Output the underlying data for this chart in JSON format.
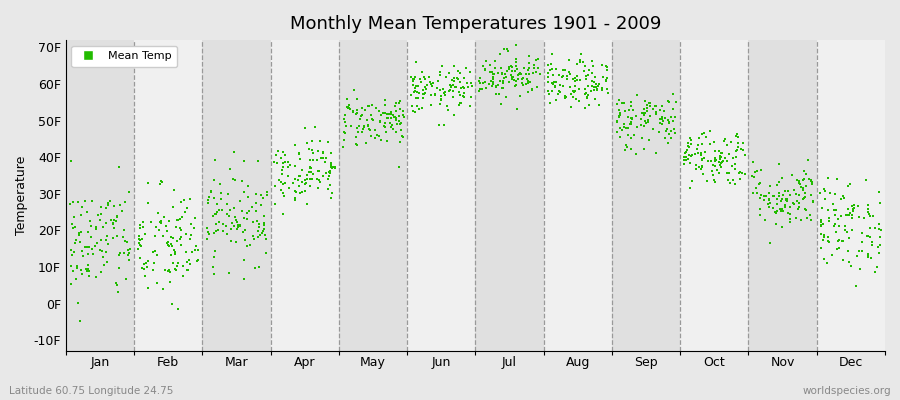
{
  "title": "Monthly Mean Temperatures 1901 - 2009",
  "ylabel": "Temperature",
  "subtitle_left": "Latitude 60.75 Longitude 24.75",
  "subtitle_right": "worldspecies.org",
  "legend_label": "Mean Temp",
  "dot_color": "#22bb00",
  "fig_bg_color": "#e8e8e8",
  "band_dark": "#e0e0e0",
  "band_light": "#f0f0f0",
  "yticks": [
    -10,
    0,
    10,
    20,
    30,
    40,
    50,
    60,
    70
  ],
  "ytick_labels": [
    "-10F",
    "0F",
    "10F",
    "20F",
    "30F",
    "40F",
    "50F",
    "60F",
    "70F"
  ],
  "ylim": [
    -13,
    72
  ],
  "months": [
    "Jan",
    "Feb",
    "Mar",
    "Apr",
    "May",
    "Jun",
    "Jul",
    "Aug",
    "Sep",
    "Oct",
    "Nov",
    "Dec"
  ],
  "monthly_means_C": [
    -8.5,
    -9.0,
    -4.5,
    2.5,
    10.0,
    14.5,
    17.0,
    15.5,
    10.0,
    4.5,
    -1.5,
    -6.0
  ],
  "monthly_stds_C": [
    4.5,
    4.5,
    3.5,
    2.5,
    2.0,
    1.8,
    1.8,
    1.8,
    2.2,
    2.2,
    2.5,
    3.5
  ],
  "n_years": 109,
  "random_seed": 42
}
